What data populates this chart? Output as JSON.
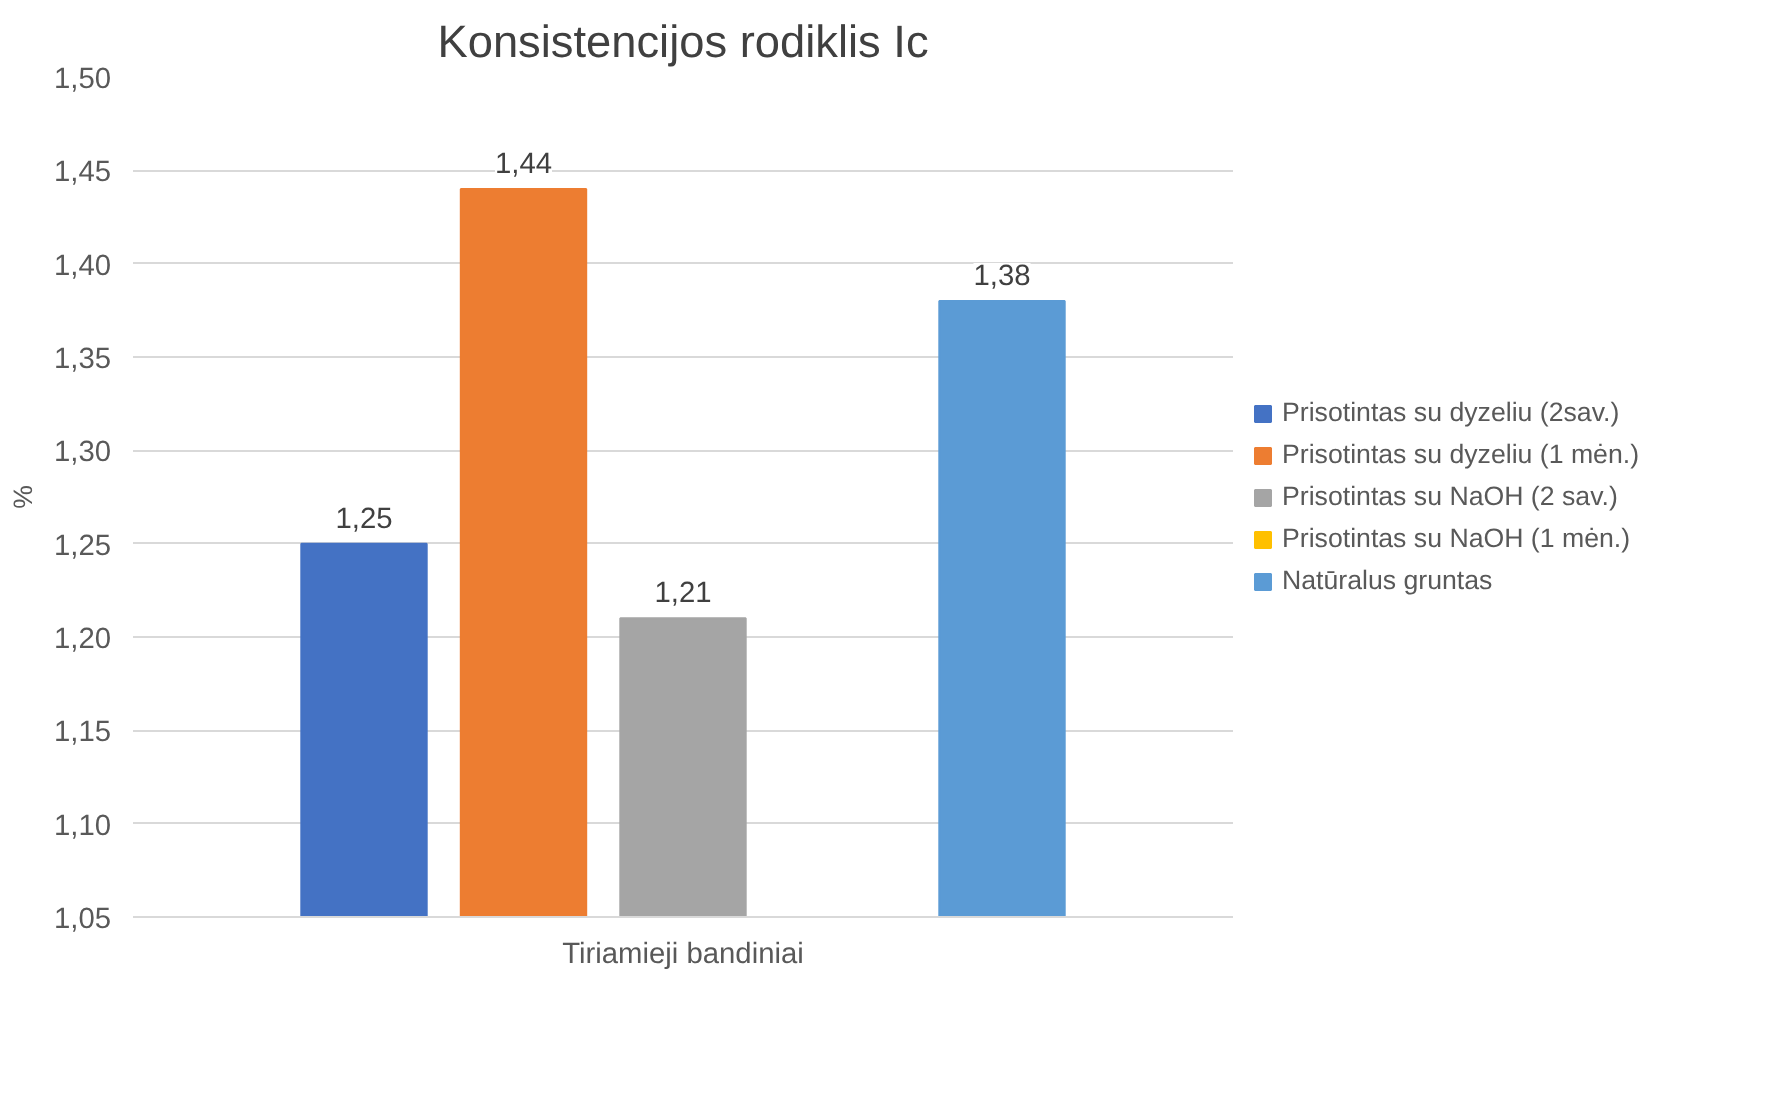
{
  "chart_data": {
    "type": "bar",
    "title": "Konsistencijos rodiklis Ic",
    "xlabel": null,
    "ylabel": "%",
    "categories": [
      "Tiriamieji bandiniai"
    ],
    "series": [
      {
        "name": "Prisotintas su dyzeliu (2sav.)",
        "color": "#4472c4",
        "values": [
          1.25
        ],
        "value_labels": [
          "1,25"
        ]
      },
      {
        "name": "Prisotintas su dyzeliu (1 mėn.)",
        "color": "#ed7d31",
        "values": [
          1.44
        ],
        "value_labels": [
          "1,44"
        ]
      },
      {
        "name": "Prisotintas su NaOH (2 sav.)",
        "color": "#a5a5a5",
        "values": [
          1.21
        ],
        "value_labels": [
          "1,21"
        ]
      },
      {
        "name": "Prisotintas su NaOH (1 mėn.)",
        "color": "#ffc000",
        "values": [
          null
        ],
        "value_labels": [
          null
        ]
      },
      {
        "name": "Natūralus gruntas",
        "color": "#5b9bd5",
        "values": [
          1.38
        ],
        "value_labels": [
          "1,38"
        ]
      }
    ],
    "ylim": [
      1.05,
      1.5
    ],
    "yticks": [
      {
        "value": 1.05,
        "label": "1,05"
      },
      {
        "value": 1.1,
        "label": "1,10"
      },
      {
        "value": 1.15,
        "label": "1,15"
      },
      {
        "value": 1.2,
        "label": "1,20"
      },
      {
        "value": 1.25,
        "label": "1,25"
      },
      {
        "value": 1.3,
        "label": "1,30"
      },
      {
        "value": 1.35,
        "label": "1,35"
      },
      {
        "value": 1.4,
        "label": "1,40"
      },
      {
        "value": 1.45,
        "label": "1,45"
      },
      {
        "value": 1.5,
        "label": "1,50"
      }
    ],
    "grid": "y",
    "legend": "right"
  }
}
